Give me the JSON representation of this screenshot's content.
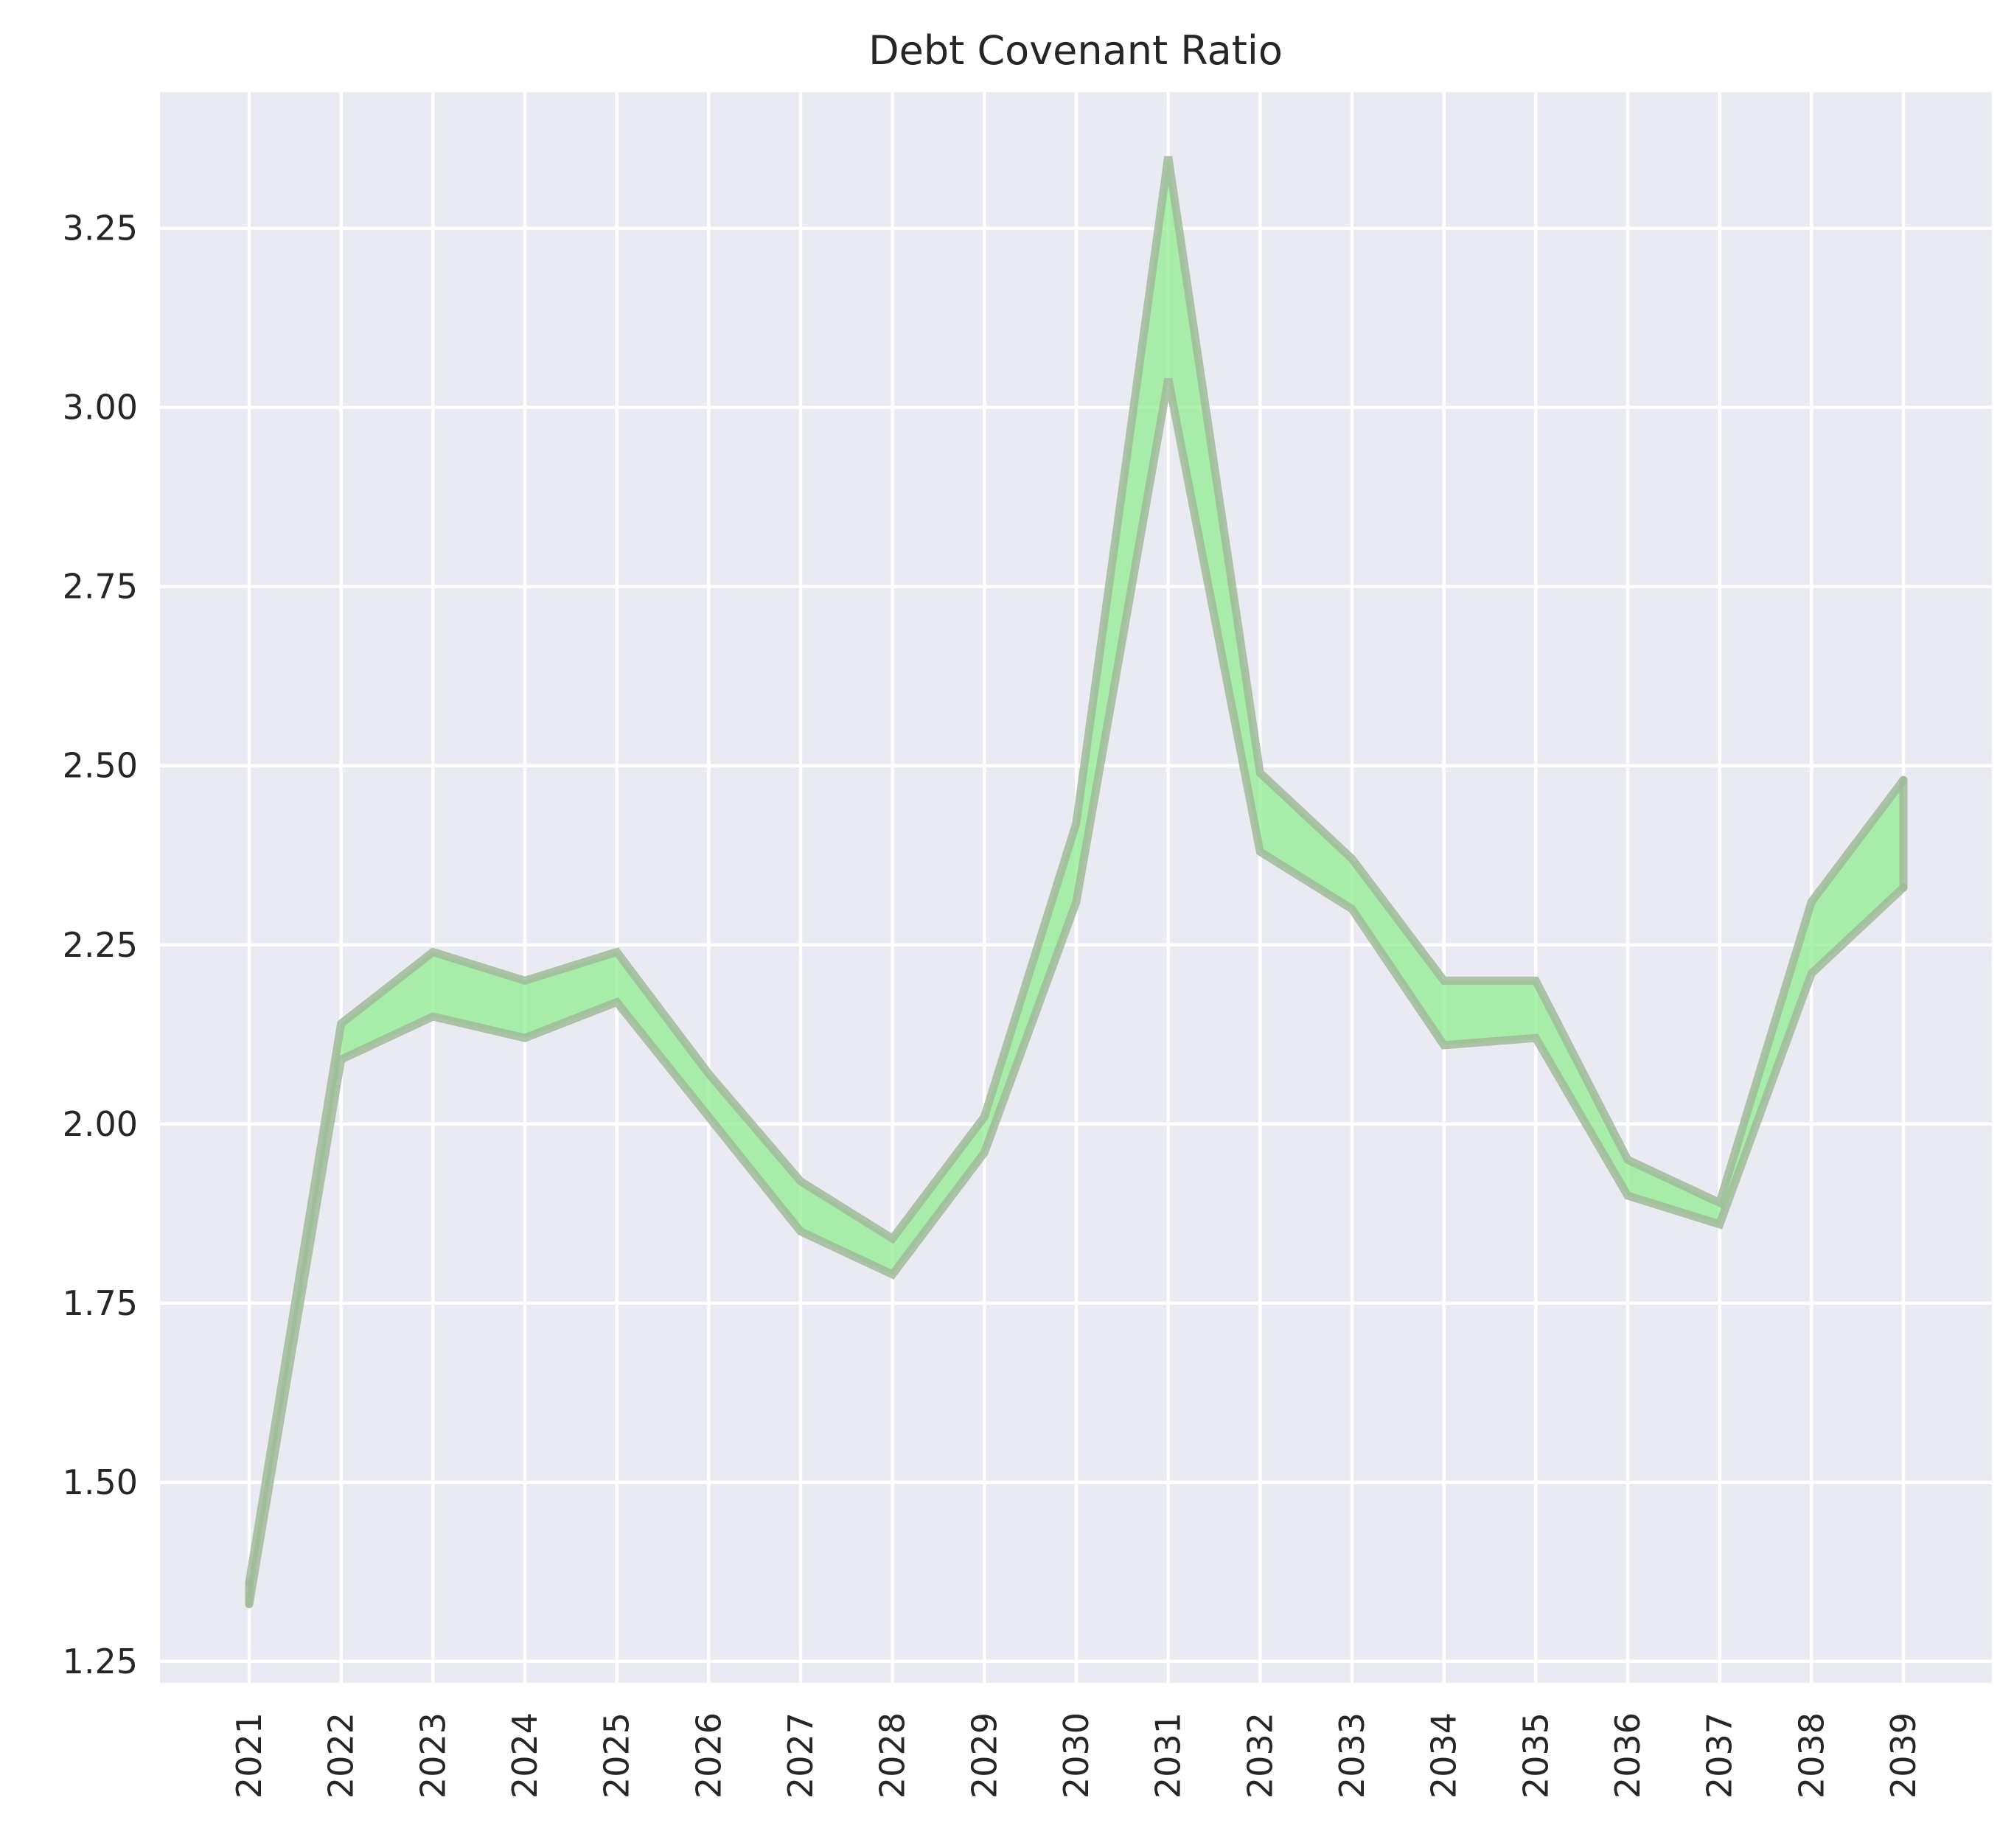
{
  "chart_data": {
    "type": "area",
    "title": "Debt Covenant Ratio",
    "xlabel": "",
    "ylabel": "",
    "x": [
      "2021",
      "2022",
      "2023",
      "2024",
      "2025",
      "2026",
      "2027",
      "2028",
      "2029",
      "2030",
      "2031",
      "2032",
      "2033",
      "2034",
      "2035",
      "2036",
      "2037",
      "2038",
      "2039"
    ],
    "series": [
      {
        "values": [
          1.36,
          2.14,
          2.24,
          2.2,
          2.24,
          2.07,
          1.92,
          1.84,
          2.01,
          2.42,
          3.35,
          2.49,
          2.37,
          2.2,
          2.2,
          1.95,
          1.89,
          2.31,
          2.48
        ]
      },
      {
        "values": [
          1.33,
          2.09,
          2.15,
          2.12,
          2.17,
          2.01,
          1.85,
          1.79,
          1.96,
          2.31,
          3.04,
          2.38,
          2.3,
          2.11,
          2.12,
          1.9,
          1.86,
          2.21,
          2.33
        ]
      }
    ],
    "ylim": [
      1.22,
      3.44
    ],
    "yticks": [
      "1.25",
      "1.50",
      "1.75",
      "2.00",
      "2.25",
      "2.50",
      "2.75",
      "3.00",
      "3.25"
    ],
    "grid": true,
    "legend": "none",
    "colors": {
      "background": "#eaeaf2",
      "grid": "#ffffff",
      "fill": "#90ee90",
      "edge": "#a0bb9a",
      "text": "#262626"
    }
  }
}
